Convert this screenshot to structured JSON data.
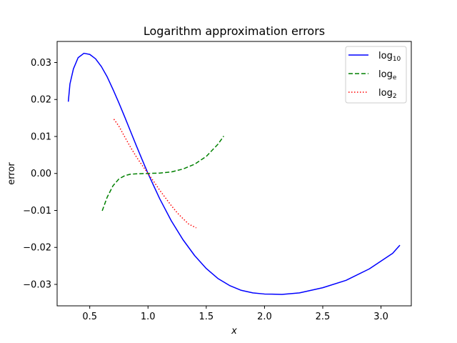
{
  "chart_data": {
    "type": "line",
    "title": "Logarithm approximation errors",
    "xlabel": "x",
    "ylabel": "error",
    "xlim": [
      0.22,
      3.26
    ],
    "ylim": [
      -0.0358,
      0.0357
    ],
    "x_ticks": [
      {
        "value": 0.5,
        "label": "0.5"
      },
      {
        "value": 1.0,
        "label": "1.0"
      },
      {
        "value": 1.5,
        "label": "1.5"
      },
      {
        "value": 2.0,
        "label": "2.0"
      },
      {
        "value": 2.5,
        "label": "2.5"
      },
      {
        "value": 3.0,
        "label": "3.0"
      }
    ],
    "y_ticks": [
      {
        "value": 0.03,
        "label": "0.03"
      },
      {
        "value": 0.02,
        "label": "0.02"
      },
      {
        "value": 0.01,
        "label": "0.01"
      },
      {
        "value": 0.0,
        "label": "0.00"
      },
      {
        "value": -0.01,
        "label": "−0.01"
      },
      {
        "value": -0.02,
        "label": "−0.02"
      },
      {
        "value": -0.03,
        "label": "−0.03"
      }
    ],
    "grid": false,
    "legend_position": "top-right",
    "series": [
      {
        "name": "log",
        "subscript": "10",
        "color": "#0000ff",
        "dash": "solid",
        "points": [
          [
            0.316,
            0.0194
          ],
          [
            0.33,
            0.0242
          ],
          [
            0.36,
            0.0283
          ],
          [
            0.4,
            0.0313
          ],
          [
            0.45,
            0.0325
          ],
          [
            0.5,
            0.0322
          ],
          [
            0.55,
            0.031
          ],
          [
            0.6,
            0.0289
          ],
          [
            0.65,
            0.0261
          ],
          [
            0.7,
            0.0227
          ],
          [
            0.75,
            0.0191
          ],
          [
            0.8,
            0.0153
          ],
          [
            0.85,
            0.0114
          ],
          [
            0.9,
            0.0075
          ],
          [
            0.95,
            0.0037
          ],
          [
            1.0,
            0.0
          ],
          [
            1.1,
            -0.0068
          ],
          [
            1.2,
            -0.0128
          ],
          [
            1.3,
            -0.0179
          ],
          [
            1.4,
            -0.0222
          ],
          [
            1.5,
            -0.0257
          ],
          [
            1.6,
            -0.0284
          ],
          [
            1.7,
            -0.0303
          ],
          [
            1.8,
            -0.0316
          ],
          [
            1.9,
            -0.0323
          ],
          [
            2.0,
            -0.0326
          ],
          [
            2.15,
            -0.0327
          ],
          [
            2.3,
            -0.0323
          ],
          [
            2.5,
            -0.0309
          ],
          [
            2.7,
            -0.0289
          ],
          [
            2.9,
            -0.0258
          ],
          [
            3.1,
            -0.0216
          ],
          [
            3.162,
            -0.0194
          ]
        ]
      },
      {
        "name": "log",
        "subscript": "e",
        "color": "#008000",
        "dash": "dashed",
        "points": [
          [
            0.607,
            -0.0101
          ],
          [
            0.65,
            -0.0064
          ],
          [
            0.7,
            -0.0033
          ],
          [
            0.75,
            -0.0015
          ],
          [
            0.8,
            -0.0006
          ],
          [
            0.85,
            -0.0002
          ],
          [
            0.9,
            -0.0001
          ],
          [
            1.0,
            0.0
          ],
          [
            1.1,
            0.0001
          ],
          [
            1.2,
            0.0004
          ],
          [
            1.3,
            0.0012
          ],
          [
            1.4,
            0.0025
          ],
          [
            1.5,
            0.0046
          ],
          [
            1.6,
            0.0079
          ],
          [
            1.65,
            0.0101
          ]
        ]
      },
      {
        "name": "log",
        "subscript": "2",
        "color": "#ff0000",
        "dash": "dotted",
        "points": [
          [
            0.707,
            0.0147
          ],
          [
            0.75,
            0.0128
          ],
          [
            0.8,
            0.0099
          ],
          [
            0.85,
            0.0071
          ],
          [
            0.9,
            0.0045
          ],
          [
            0.95,
            0.0022
          ],
          [
            1.0,
            0.0
          ],
          [
            1.05,
            -0.0022
          ],
          [
            1.1,
            -0.0045
          ],
          [
            1.15,
            -0.0066
          ],
          [
            1.2,
            -0.0087
          ],
          [
            1.25,
            -0.0106
          ],
          [
            1.3,
            -0.0122
          ],
          [
            1.35,
            -0.0137
          ],
          [
            1.414,
            -0.0147
          ]
        ]
      }
    ]
  }
}
